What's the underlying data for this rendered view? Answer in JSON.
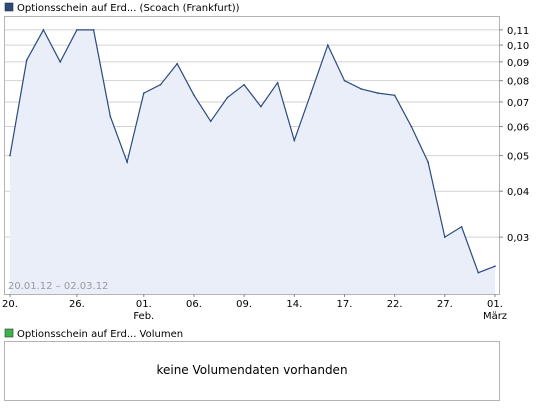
{
  "colors": {
    "line": "#2b4a7e",
    "fill": "#e9eef9",
    "frame": "#b4b4b4",
    "grid": "#d2d2d2",
    "price_legend": "#2b4a7e",
    "volume_legend": "#3cb44a",
    "date_range_text": "#9a9a9a"
  },
  "price_panel": {
    "legend_label": "Optionsschein auf Erd... (Scoach (Frankfurt))",
    "date_range": "20.01.12 – 02.03.12"
  },
  "volume_panel": {
    "legend_label": "Optionsschein auf Erd... Volumen",
    "empty_message": "keine Volumendaten vorhanden"
  },
  "chart_data": {
    "type": "area",
    "scale": "log",
    "grid": "horizontal",
    "y_tick_labels": [
      "0,11",
      "0,10",
      "0,09",
      "0,08",
      "0,07",
      "0,06",
      "0,05",
      "0,04",
      "0,03"
    ],
    "y_ticks": [
      0.11,
      0.1,
      0.09,
      0.08,
      0.07,
      0.06,
      0.05,
      0.04,
      0.03
    ],
    "ylim": [
      0.021,
      0.12
    ],
    "x_tick_labels": [
      {
        "label": "20.",
        "index": 0
      },
      {
        "label": "26.",
        "index": 4
      },
      {
        "label": "01.",
        "sub": "Feb.",
        "index": 8
      },
      {
        "label": "06.",
        "index": 11
      },
      {
        "label": "09.",
        "index": 14
      },
      {
        "label": "14.",
        "index": 17
      },
      {
        "label": "17.",
        "index": 20
      },
      {
        "label": "22.",
        "index": 23
      },
      {
        "label": "27.",
        "index": 26
      },
      {
        "label": "01.",
        "sub": "März",
        "index": 29
      }
    ],
    "series": [
      {
        "values": [
          0.05,
          0.091,
          0.11,
          0.09,
          0.11,
          0.11,
          0.064,
          0.048,
          0.074,
          0.078,
          0.089,
          0.073,
          0.062,
          0.072,
          0.078,
          0.068,
          0.079,
          0.055,
          0.074,
          0.1,
          0.08,
          0.076,
          0.074,
          0.073,
          0.06,
          0.048,
          0.03,
          0.032,
          0.024,
          0.025
        ]
      }
    ]
  }
}
